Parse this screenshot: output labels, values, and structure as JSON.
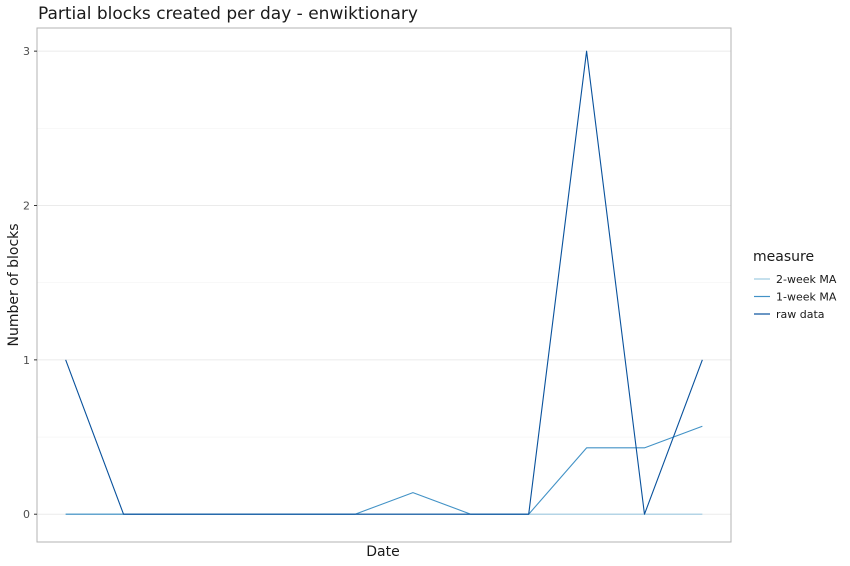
{
  "chart_data": {
    "type": "line",
    "title": "Partial blocks created per day - enwiktionary",
    "xlabel": "Date",
    "ylabel": "Number of blocks",
    "x": [
      1,
      2,
      3,
      4,
      5,
      6,
      7,
      8,
      9,
      10,
      11,
      12
    ],
    "ylim": [
      -0.18,
      3.15
    ],
    "yticks": [
      0,
      1,
      2,
      3
    ],
    "grid": true,
    "legend": {
      "title": "measure",
      "position": "right"
    },
    "series": [
      {
        "name": "2-week MA",
        "color": "#9ecae1",
        "values": [
          0,
          0,
          0,
          0,
          0,
          0,
          0,
          0,
          0,
          0,
          0,
          0
        ]
      },
      {
        "name": "1-week MA",
        "color": "#4292c6",
        "values": [
          0,
          0,
          0,
          0,
          0,
          0,
          0.14,
          0,
          0,
          0.43,
          0.43,
          0.57
        ]
      },
      {
        "name": "raw data",
        "color": "#08519c",
        "values": [
          1,
          0,
          0,
          0,
          0,
          0,
          0,
          0,
          0,
          3,
          0,
          1
        ]
      }
    ]
  }
}
